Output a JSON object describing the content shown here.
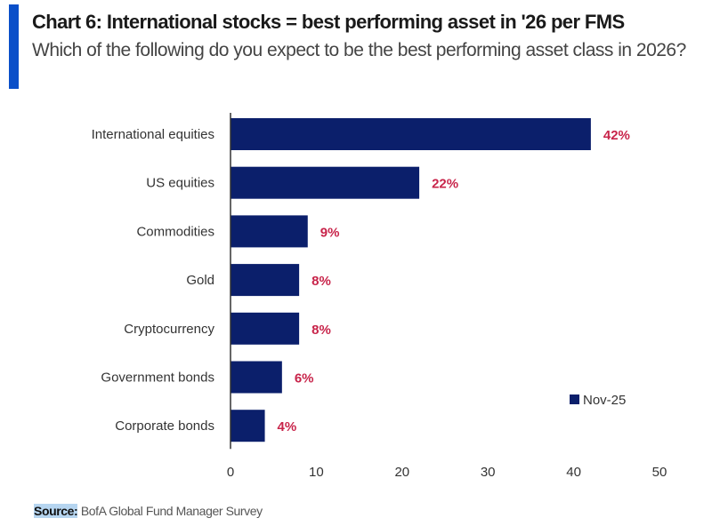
{
  "header": {
    "title": "Chart 6: International stocks = best performing asset in '26 per FMS",
    "subtitle": "Which of the following do you expect to be the best performing asset class in 2026?"
  },
  "colors": {
    "accent": "#0a4fc9",
    "bar": "#0b1f6b",
    "value_label": "#c8244a"
  },
  "chart_data": {
    "type": "bar",
    "orientation": "horizontal",
    "title": "Chart 6: International stocks = best performing asset in '26 per FMS",
    "subtitle": "Which of the following do you expect to be the best performing asset class in 2026?",
    "categories": [
      "International equities",
      "US equities",
      "Commodities",
      "Gold",
      "Cryptocurrency",
      "Government bonds",
      "Corporate bonds"
    ],
    "series": [
      {
        "name": "Nov-25",
        "values": [
          42,
          22,
          9,
          8,
          8,
          6,
          4
        ]
      }
    ],
    "value_labels": [
      "42%",
      "22%",
      "9%",
      "8%",
      "8%",
      "6%",
      "4%"
    ],
    "xlabel": "",
    "ylabel": "",
    "xlim": [
      0,
      50
    ],
    "xticks": [
      0,
      10,
      20,
      30,
      40,
      50
    ],
    "xtick_labels": [
      "0",
      "10",
      "20",
      "30",
      "40",
      "50"
    ],
    "grid": false,
    "legend": {
      "entries": [
        "Nov-25"
      ],
      "placement": "bottom-right"
    }
  },
  "source": {
    "key": "Source:",
    "text": " BofA Global Fund Manager Survey"
  }
}
